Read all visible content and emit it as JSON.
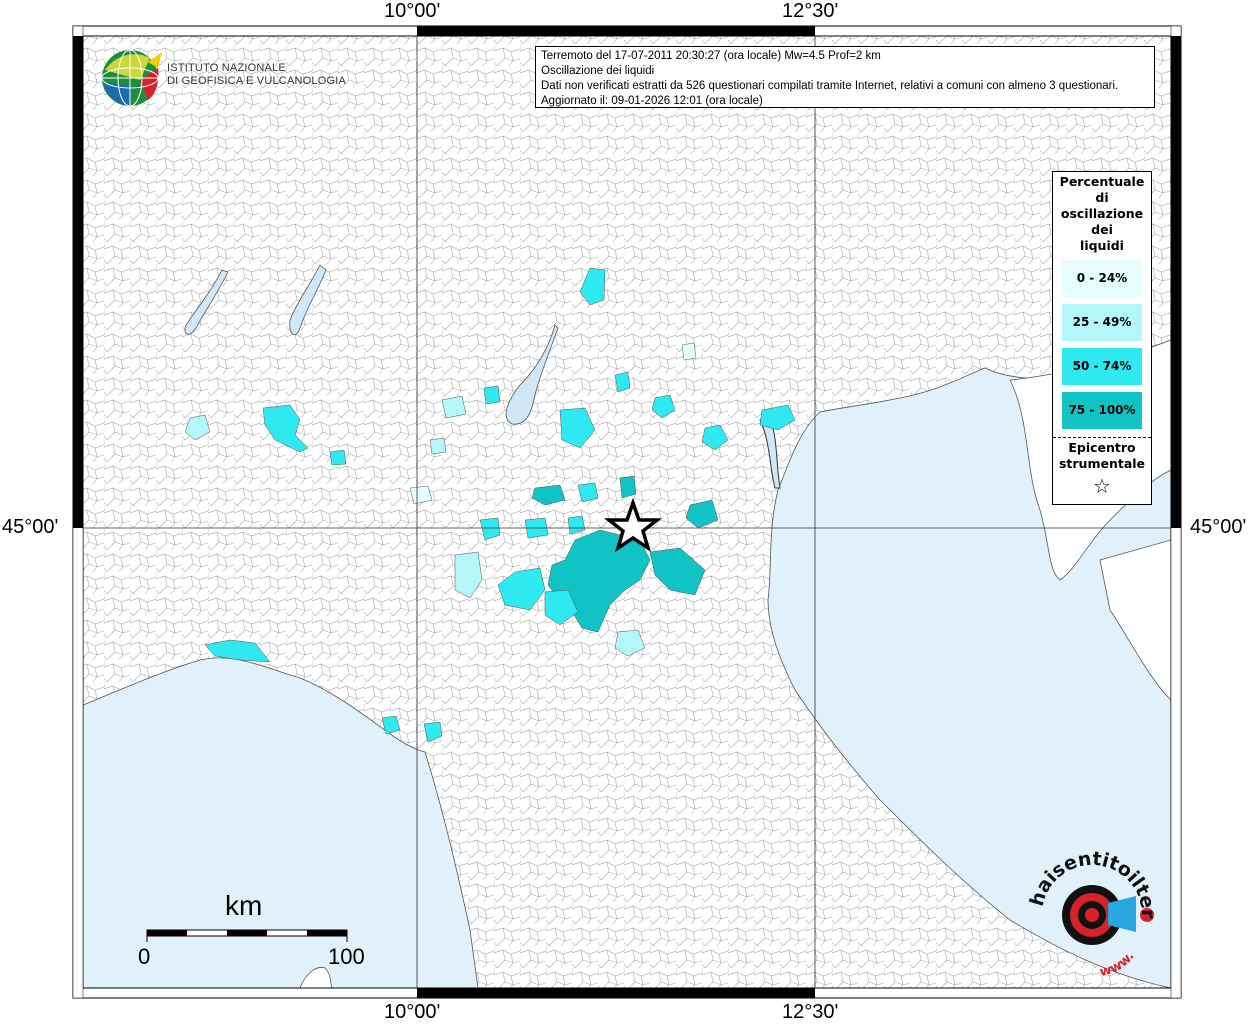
{
  "coordinates": {
    "lon_left": "10°00'",
    "lon_right": "12°30'",
    "lat": "45°00'"
  },
  "info": {
    "line1": "Terremoto del 17-07-2011 20:30:27 (ora locale) Mw=4.5 Prof=2 km",
    "line2": "Oscillazione dei liquidi",
    "line3": "Dati non verificati estratti da 526 questionari compilati tramite Internet, relativi a comuni con almeno 3 questionari.",
    "line4": "Aggiornato il: 09-01-2026 12:01 (ora locale)"
  },
  "logo": {
    "line1": "ISTITUTO NAZIONALE",
    "line2": "DI GEOFISICA E VULCANOLOGIA"
  },
  "legend": {
    "title": [
      "Percentuale",
      "di",
      "oscillazione",
      "dei",
      "liquidi"
    ],
    "classes": [
      {
        "label": "0 - 24%",
        "color": "#e6fefe"
      },
      {
        "label": "25 - 49%",
        "color": "#b3f7fa"
      },
      {
        "label": "50 - 74%",
        "color": "#2ee9ef"
      },
      {
        "label": "75 - 100%",
        "color": "#10c3c5"
      }
    ],
    "epicenter_title": [
      "Epicentro",
      "strumentale"
    ],
    "epicenter_symbol": "☆"
  },
  "scalebar": {
    "unit": "km",
    "min": "0",
    "max": "100"
  },
  "watermark": {
    "text": "haisentitoilterremoto.it",
    "url": "www."
  },
  "colors": {
    "sea": "#e1f1fb",
    "land": "#ffffff",
    "borders": "#9a9a9a"
  }
}
